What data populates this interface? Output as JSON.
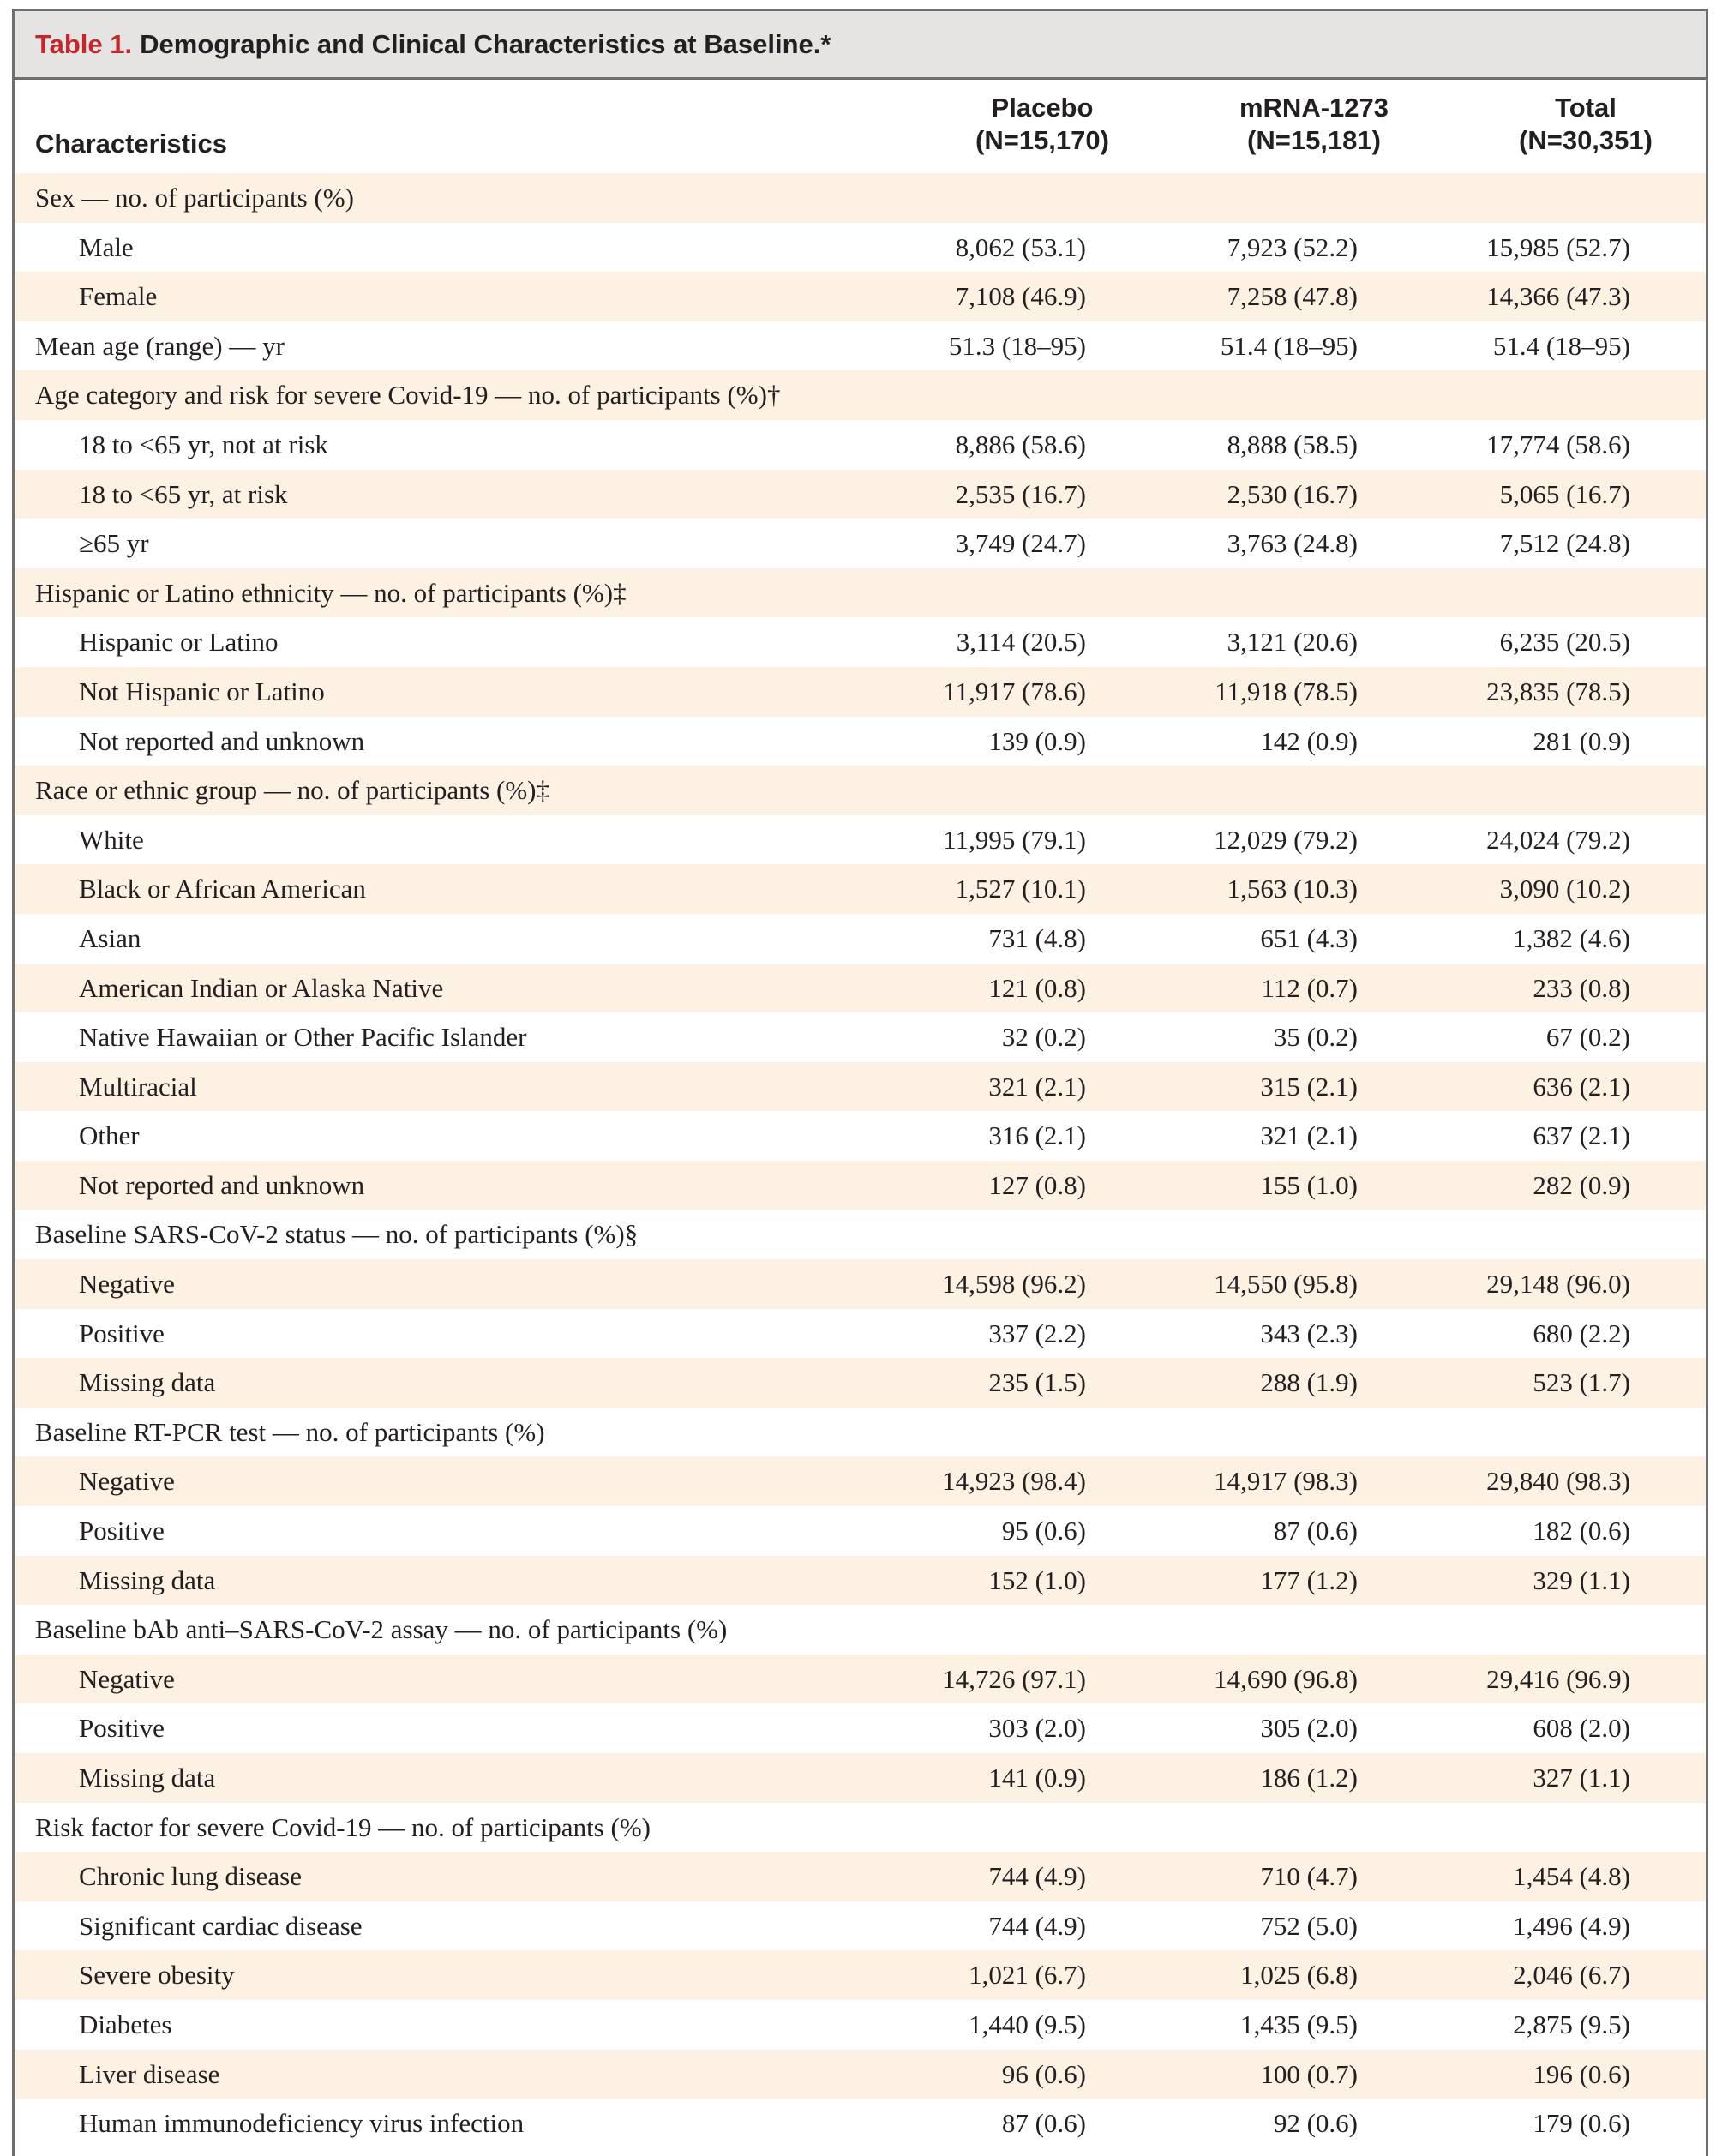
{
  "table": {
    "label": "Table 1.",
    "title": "Demographic and Clinical Characteristics at Baseline.*",
    "columns": {
      "characteristics": "Characteristics",
      "placebo": {
        "name": "Placebo",
        "n": "(N=15,170)"
      },
      "mrna": {
        "name": "mRNA-1273",
        "n": "(N=15,181)"
      },
      "total": {
        "name": "Total",
        "n": "(N=30,351)"
      }
    },
    "rows": [
      {
        "type": "section",
        "label": "Sex — no. of participants (%)"
      },
      {
        "type": "item",
        "label": "Male",
        "placebo": "8,062 (53.1)",
        "mrna": "7,923 (52.2)",
        "total": "15,985 (52.7)"
      },
      {
        "type": "item",
        "label": "Female",
        "placebo": "7,108 (46.9)",
        "mrna": "7,258 (47.8)",
        "total": "14,366 (47.3)"
      },
      {
        "type": "section",
        "label": "Mean age (range) — yr",
        "placebo": "51.3 (18–95)",
        "mrna": "51.4 (18–95)",
        "total": "51.4 (18–95)"
      },
      {
        "type": "section",
        "label": "Age category and risk for severe Covid-19 — no. of participants (%)†"
      },
      {
        "type": "item",
        "label": "18 to <65 yr, not at risk",
        "placebo": "8,886 (58.6)",
        "mrna": "8,888 (58.5)",
        "total": "17,774 (58.6)"
      },
      {
        "type": "item",
        "label": "18 to <65 yr, at risk",
        "placebo": "2,535 (16.7)",
        "mrna": "2,530 (16.7)",
        "total": "5,065 (16.7)"
      },
      {
        "type": "item",
        "label": "≥65 yr",
        "placebo": "3,749 (24.7)",
        "mrna": "3,763 (24.8)",
        "total": "7,512 (24.8)"
      },
      {
        "type": "section",
        "label": "Hispanic or Latino ethnicity — no. of participants (%)‡"
      },
      {
        "type": "item",
        "label": "Hispanic or Latino",
        "placebo": "3,114 (20.5)",
        "mrna": "3,121 (20.6)",
        "total": "6,235 (20.5)"
      },
      {
        "type": "item",
        "label": "Not Hispanic or Latino",
        "placebo": "11,917 (78.6)",
        "mrna": "11,918 (78.5)",
        "total": "23,835 (78.5)"
      },
      {
        "type": "item",
        "label": "Not reported and unknown",
        "placebo": "139 (0.9)",
        "mrna": "142 (0.9)",
        "total": "281 (0.9)"
      },
      {
        "type": "section",
        "label": "Race or ethnic group — no. of participants (%)‡"
      },
      {
        "type": "item",
        "label": "White",
        "placebo": "11,995 (79.1)",
        "mrna": "12,029 (79.2)",
        "total": "24,024 (79.2)"
      },
      {
        "type": "item",
        "label": "Black or African American",
        "placebo": "1,527 (10.1)",
        "mrna": "1,563 (10.3)",
        "total": "3,090 (10.2)"
      },
      {
        "type": "item",
        "label": "Asian",
        "placebo": "731 (4.8)",
        "mrna": "651 (4.3)",
        "total": "1,382 (4.6)"
      },
      {
        "type": "item",
        "label": "American Indian or Alaska Native",
        "placebo": "121 (0.8)",
        "mrna": "112 (0.7)",
        "total": "233 (0.8)"
      },
      {
        "type": "item",
        "label": "Native Hawaiian or Other Pacific Islander",
        "placebo": "32 (0.2)",
        "mrna": "35 (0.2)",
        "total": "67 (0.2)"
      },
      {
        "type": "item",
        "label": "Multiracial",
        "placebo": "321 (2.1)",
        "mrna": "315 (2.1)",
        "total": "636 (2.1)"
      },
      {
        "type": "item",
        "label": "Other",
        "placebo": "316 (2.1)",
        "mrna": "321 (2.1)",
        "total": "637 (2.1)"
      },
      {
        "type": "item",
        "label": "Not reported and unknown",
        "placebo": "127 (0.8)",
        "mrna": "155 (1.0)",
        "total": "282 (0.9)"
      },
      {
        "type": "section",
        "label": "Baseline SARS-CoV-2 status — no. of participants (%)§"
      },
      {
        "type": "item",
        "label": "Negative",
        "placebo": "14,598 (96.2)",
        "mrna": "14,550 (95.8)",
        "total": "29,148 (96.0)"
      },
      {
        "type": "item",
        "label": "Positive",
        "placebo": "337 (2.2)",
        "mrna": "343 (2.3)",
        "total": "680 (2.2)"
      },
      {
        "type": "item",
        "label": "Missing data",
        "placebo": "235 (1.5)",
        "mrna": "288 (1.9)",
        "total": "523 (1.7)"
      },
      {
        "type": "section",
        "label": "Baseline RT-PCR test — no. of participants (%)"
      },
      {
        "type": "item",
        "label": "Negative",
        "placebo": "14,923 (98.4)",
        "mrna": "14,917 (98.3)",
        "total": "29,840 (98.3)"
      },
      {
        "type": "item",
        "label": "Positive",
        "placebo": "95 (0.6)",
        "mrna": "87 (0.6)",
        "total": "182 (0.6)"
      },
      {
        "type": "item",
        "label": "Missing data",
        "placebo": "152 (1.0)",
        "mrna": "177 (1.2)",
        "total": "329 (1.1)"
      },
      {
        "type": "section",
        "label": "Baseline bAb anti–SARS-CoV-2 assay — no. of participants (%)"
      },
      {
        "type": "item",
        "label": "Negative",
        "placebo": "14,726 (97.1)",
        "mrna": "14,690 (96.8)",
        "total": "29,416 (96.9)"
      },
      {
        "type": "item",
        "label": "Positive",
        "placebo": "303 (2.0)",
        "mrna": "305 (2.0)",
        "total": "608 (2.0)"
      },
      {
        "type": "item",
        "label": "Missing data",
        "placebo": "141 (0.9)",
        "mrna": "186 (1.2)",
        "total": "327 (1.1)"
      },
      {
        "type": "section",
        "label": "Risk factor for severe Covid-19 — no. of participants (%)"
      },
      {
        "type": "item",
        "label": "Chronic lung disease",
        "placebo": "744 (4.9)",
        "mrna": "710 (4.7)",
        "total": "1,454 (4.8)"
      },
      {
        "type": "item",
        "label": "Significant cardiac disease",
        "placebo": "744 (4.9)",
        "mrna": "752 (5.0)",
        "total": "1,496 (4.9)"
      },
      {
        "type": "item",
        "label": "Severe obesity",
        "placebo": "1,021 (6.7)",
        "mrna": "1,025 (6.8)",
        "total": "2,046 (6.7)"
      },
      {
        "type": "item",
        "label": "Diabetes",
        "placebo": "1,440 (9.5)",
        "mrna": "1,435 (9.5)",
        "total": "2,875 (9.5)"
      },
      {
        "type": "item",
        "label": "Liver disease",
        "placebo": "96 (0.6)",
        "mrna": "100 (0.7)",
        "total": "196 (0.6)"
      },
      {
        "type": "item",
        "label": "Human immunodeficiency virus infection",
        "placebo": "87 (0.6)",
        "mrna": "92 (0.6)",
        "total": "179 (0.6)"
      }
    ]
  }
}
